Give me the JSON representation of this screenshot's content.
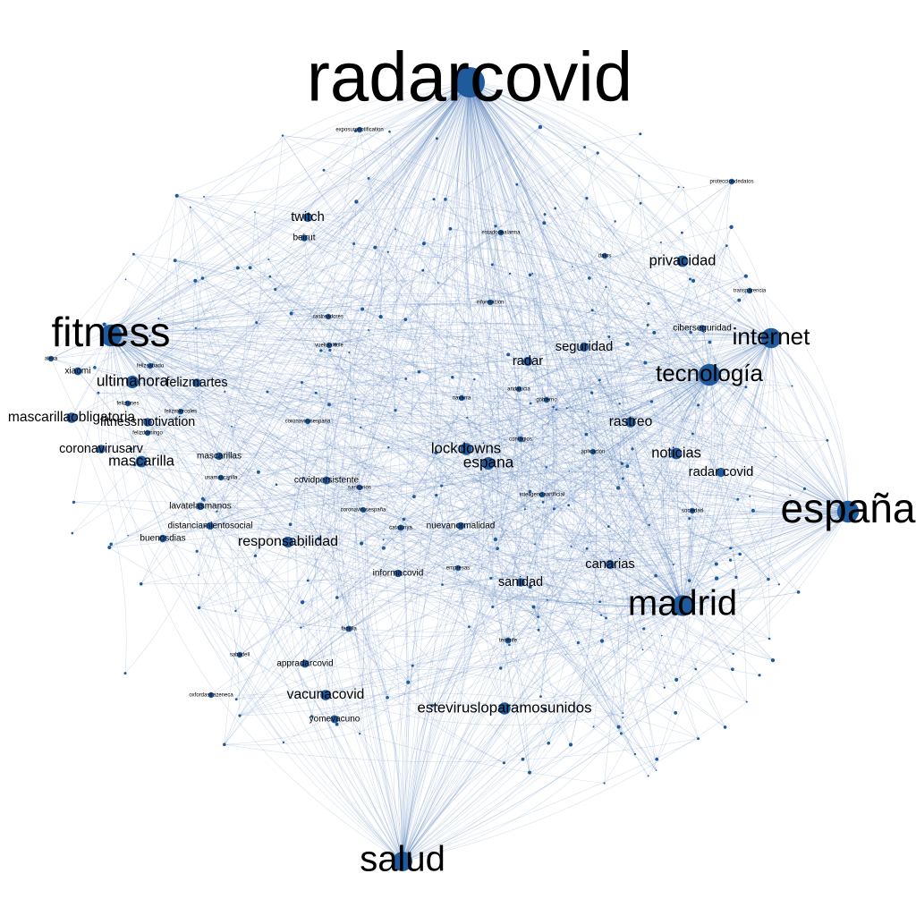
{
  "graph": {
    "node_color": "#1f5a9c",
    "edge_color": "#4a78b5",
    "background": "#ffffff",
    "hashtags": [
      {
        "id": "radarcovid",
        "label": "radarcovid",
        "weight": 10
      },
      {
        "id": "espana_tilde",
        "label": "españa",
        "weight": 6
      },
      {
        "id": "fitness",
        "label": "fitness",
        "weight": 6
      },
      {
        "id": "madrid",
        "label": "madrid",
        "weight": 5.5
      },
      {
        "id": "salud",
        "label": "salud",
        "weight": 5
      },
      {
        "id": "internet",
        "label": "internet",
        "weight": 3.5
      },
      {
        "id": "tecnologia",
        "label": "tecnología",
        "weight": 3.8
      },
      {
        "id": "twitch",
        "label": "twitch",
        "weight": 1.6
      },
      {
        "id": "beirut",
        "label": "beirut",
        "weight": 1.2
      },
      {
        "id": "privacidad",
        "label": "privacidad",
        "weight": 2
      },
      {
        "id": "xiaomi",
        "label": "xiaomi",
        "weight": 1.4
      },
      {
        "id": "ultimahora",
        "label": "ultimahora",
        "weight": 2.2
      },
      {
        "id": "felizmartes",
        "label": "felizmartes",
        "weight": 1.5
      },
      {
        "id": "mascarillaobligatoria",
        "label": "mascarillaobligatoria",
        "weight": 1.8
      },
      {
        "id": "fitnessmotivation",
        "label": "fitnessmotivation",
        "weight": 1.5
      },
      {
        "id": "coronavirusarv",
        "label": "coronavirusarv",
        "weight": 1.5
      },
      {
        "id": "mascarilla",
        "label": "mascarilla",
        "weight": 2
      },
      {
        "id": "mascarillas",
        "label": "mascarillas",
        "weight": 1.3
      },
      {
        "id": "lavatelasmanos",
        "label": "lavatelasmanos",
        "weight": 1.3
      },
      {
        "id": "distanciamientosocial",
        "label": "distanciamientosocial",
        "weight": 1.3
      },
      {
        "id": "buenosdias",
        "label": "buenosdias",
        "weight": 1.3
      },
      {
        "id": "responsabilidad",
        "label": "responsabilidad",
        "weight": 1.9
      },
      {
        "id": "covidpersistente",
        "label": "covidpersistente",
        "weight": 1.4
      },
      {
        "id": "lockdowns",
        "label": "lockdowns",
        "weight": 2.1
      },
      {
        "id": "espana",
        "label": "espana",
        "weight": 2.2
      },
      {
        "id": "seguridad",
        "label": "seguridad",
        "weight": 1.6
      },
      {
        "id": "radar",
        "label": "radar",
        "weight": 1.6
      },
      {
        "id": "rastreo",
        "label": "rastreo",
        "weight": 1.8
      },
      {
        "id": "noticias",
        "label": "noticias",
        "weight": 2
      },
      {
        "id": "radar_covid",
        "label": "radar covid",
        "weight": 1.6
      },
      {
        "id": "ciberseguridad",
        "label": "ciberseguridad",
        "weight": 1.2
      },
      {
        "id": "transparencia",
        "label": "transparencia",
        "weight": 1
      },
      {
        "id": "canarias",
        "label": "canarias",
        "weight": 1.6
      },
      {
        "id": "sanidad",
        "label": "sanidad",
        "weight": 1.5
      },
      {
        "id": "informacovid",
        "label": "informacovid",
        "weight": 1.3
      },
      {
        "id": "nuevanormalidad",
        "label": "nuevanormalidad",
        "weight": 1.3
      },
      {
        "id": "catalunya",
        "label": "catalunya",
        "weight": 1.1
      },
      {
        "id": "familia",
        "label": "familia",
        "weight": 1.1
      },
      {
        "id": "appradarcovid",
        "label": "appradarcovid",
        "weight": 1.4
      },
      {
        "id": "vacunacovid",
        "label": "vacunacovid",
        "weight": 1.8
      },
      {
        "id": "yomevacuno",
        "label": "yomevacuno",
        "weight": 1.4
      },
      {
        "id": "estevirus",
        "label": "estevirusloparamosunidos",
        "weight": 2.1
      },
      {
        "id": "tenerife",
        "label": "tenerife",
        "weight": 1.1
      },
      {
        "id": "datos",
        "label": "datos",
        "weight": 1
      },
      {
        "id": "estadodealarma",
        "label": "estadodealarma",
        "weight": 1
      },
      {
        "id": "exposurenotification",
        "label": "exposurenotification",
        "weight": 1
      },
      {
        "id": "rastreadores",
        "label": "rastreadores",
        "weight": 1
      },
      {
        "id": "informacion",
        "label": "información",
        "weight": 1
      },
      {
        "id": "gobierno",
        "label": "gobierno",
        "weight": 1
      },
      {
        "id": "andalucia",
        "label": "andalucia",
        "weight": 1
      },
      {
        "id": "aplicacion",
        "label": "aplicación",
        "weight": 1
      },
      {
        "id": "sociedad",
        "label": "sociedad",
        "weight": 1
      },
      {
        "id": "oxfordastrazeneca",
        "label": "oxfordastrazeneca",
        "weight": 1
      },
      {
        "id": "sabadell",
        "label": "sabadell",
        "weight": 1
      },
      {
        "id": "vueltaalcole",
        "label": "vueltaalcole",
        "weight": 1
      },
      {
        "id": "coronavirusespana",
        "label": "coronavirusespana",
        "weight": 1
      },
      {
        "id": "coronavirusespana2",
        "label": "coronavirusespaña",
        "weight": 1
      },
      {
        "id": "alexa",
        "label": "alexa",
        "weight": 1
      },
      {
        "id": "felizsabado",
        "label": "felizsabado",
        "weight": 1
      },
      {
        "id": "felizmiercoles",
        "label": "felizmiercoles",
        "weight": 1
      },
      {
        "id": "felizdomingo",
        "label": "felizdomingo",
        "weight": 1
      },
      {
        "id": "felizlunes",
        "label": "felizlunes",
        "weight": 1
      },
      {
        "id": "usamascarilla",
        "label": "usamascarilla",
        "weight": 1
      },
      {
        "id": "sanitarios",
        "label": "sanitarios",
        "weight": 1
      },
      {
        "id": "protecciondatos",
        "label": "protecciondedatos",
        "weight": 1
      },
      {
        "id": "contagios",
        "label": "contagios",
        "weight": 1
      },
      {
        "id": "empresas",
        "label": "empresas",
        "weight": 1
      },
      {
        "id": "navarra",
        "label": "navarra",
        "weight": 1
      },
      {
        "id": "inteligenciaartificial",
        "label": "inteligenciaartificial",
        "weight": 1
      }
    ]
  }
}
